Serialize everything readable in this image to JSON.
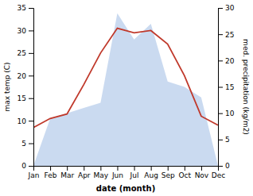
{
  "chart_data": {
    "type": "line",
    "x_label": "date (month)",
    "y_label": "max temp (C)",
    "y2_label": "med. precipitation (kg/m2)",
    "categories": [
      "Jan",
      "Feb",
      "Mar",
      "Apr",
      "May",
      "Jun",
      "Jul",
      "Aug",
      "Sep",
      "Oct",
      "Nov",
      "Dec"
    ],
    "series": [
      {
        "type": "area",
        "axis": "y2",
        "color": "#aec6e8",
        "values": [
          0.0,
          9.0,
          10.0,
          11.0,
          12.0,
          29.0,
          24.0,
          27.0,
          16.0,
          15.0,
          13.0,
          0.0
        ]
      },
      {
        "type": "line",
        "color": "#c0392b",
        "values": [
          8.5,
          10.5,
          11.5,
          18.0,
          25.0,
          30.5,
          29.5,
          30.0,
          27.0,
          20.0,
          11.0,
          9.0
        ]
      }
    ],
    "ylim": [
      0,
      35
    ],
    "yticks": [
      0,
      5,
      10,
      15,
      20,
      25,
      30,
      35
    ],
    "y2lim": [
      0,
      30
    ],
    "y2ticks": [
      0,
      5,
      10,
      15,
      20,
      25,
      30
    ]
  }
}
